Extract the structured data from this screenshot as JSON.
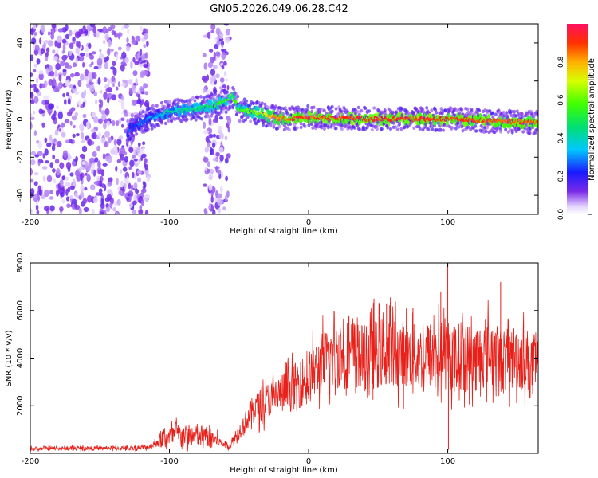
{
  "title": "GN05.2026.049.06.28.C42",
  "colors": {
    "trace": "#e8201a",
    "spectrogram_low": "#6a2be0",
    "frame": "#000000"
  },
  "chart_data": [
    {
      "type": "heatmap",
      "name": "spectrogram",
      "title": "GN05.2026.049.06.28.C42",
      "xlabel": "Height of straight line (km)",
      "ylabel": "Frequency (Hz)",
      "xlim": [
        -200,
        165
      ],
      "ylim": [
        -50,
        50
      ],
      "xticks": [
        -200,
        -100,
        0,
        100
      ],
      "xtick_labels": [
        "-200",
        "-100",
        "0",
        "100"
      ],
      "yticks": [
        -40,
        -20,
        0,
        20,
        40
      ],
      "ytick_labels": [
        "-40",
        "-20",
        "0",
        "20",
        "40"
      ],
      "colorbar": {
        "label": "Normalized spectral amplitude",
        "range": [
          0,
          1
        ],
        "ticks": [
          0,
          0.2,
          0.4,
          0.6,
          0.8
        ],
        "tick_labels": [
          "0.0",
          "0.2",
          "0.4",
          "0.6",
          "0.8"
        ]
      },
      "regions": [
        {
          "x": [
            -200,
            -115
          ],
          "description": "broadband noise",
          "amplitude": 0.1
        },
        {
          "x": [
            -75,
            -57
          ],
          "description": "noise band",
          "amplitude": 0.1
        }
      ],
      "signal_track": {
        "x": [
          -130,
          -115,
          -100,
          -85,
          -70,
          -60,
          -55,
          -50,
          -40,
          -30,
          -20,
          0,
          50,
          100,
          165
        ],
        "frequency": [
          -6,
          0,
          4,
          5,
          7,
          9,
          12,
          5,
          4,
          2,
          0,
          1,
          0,
          0,
          -2
        ],
        "amplitude": [
          0.22,
          0.3,
          0.42,
          0.45,
          0.5,
          0.55,
          0.6,
          0.55,
          0.6,
          0.75,
          0.85,
          0.9,
          0.92,
          0.9,
          0.88
        ]
      }
    },
    {
      "type": "line",
      "name": "snr",
      "xlabel": "Height of straight line (km)",
      "ylabel": "SNR (10 * v/v)",
      "xlim": [
        -200,
        165
      ],
      "ylim": [
        0,
        8000
      ],
      "xticks": [
        -200,
        -100,
        0,
        100
      ],
      "xtick_labels": [
        "-200",
        "-100",
        "0",
        "100"
      ],
      "yticks": [
        2000,
        4000,
        6000,
        8000
      ],
      "ytick_labels": [
        "2000",
        "4000",
        "6000",
        "8000"
      ],
      "series": [
        {
          "name": "SNR",
          "x": [
            -200,
            -130,
            -115,
            -105,
            -95,
            -85,
            -75,
            -65,
            -57,
            -50,
            -40,
            -30,
            -20,
            -10,
            0,
            10,
            20,
            30,
            40,
            50,
            60,
            70,
            80,
            90,
            100,
            110,
            120,
            130,
            140,
            150,
            160,
            165
          ],
          "y": [
            200,
            220,
            260,
            600,
            800,
            700,
            750,
            500,
            300,
            900,
            1800,
            2200,
            2500,
            2800,
            3200,
            3800,
            4100,
            4200,
            4000,
            4200,
            4300,
            4100,
            4000,
            4200,
            4000,
            4100,
            4000,
            4300,
            3800,
            4100,
            3800,
            3600
          ],
          "spikes": [
            {
              "x": 100,
              "y": 8200
            },
            {
              "x": 100.5,
              "y": 150
            },
            {
              "x": 138,
              "y": 7200
            },
            {
              "x": 47,
              "y": 6500
            },
            {
              "x": 56,
              "y": 6300
            },
            {
              "x": 75,
              "y": 6100
            },
            {
              "x": 95,
              "y": 6800
            }
          ]
        }
      ]
    }
  ]
}
